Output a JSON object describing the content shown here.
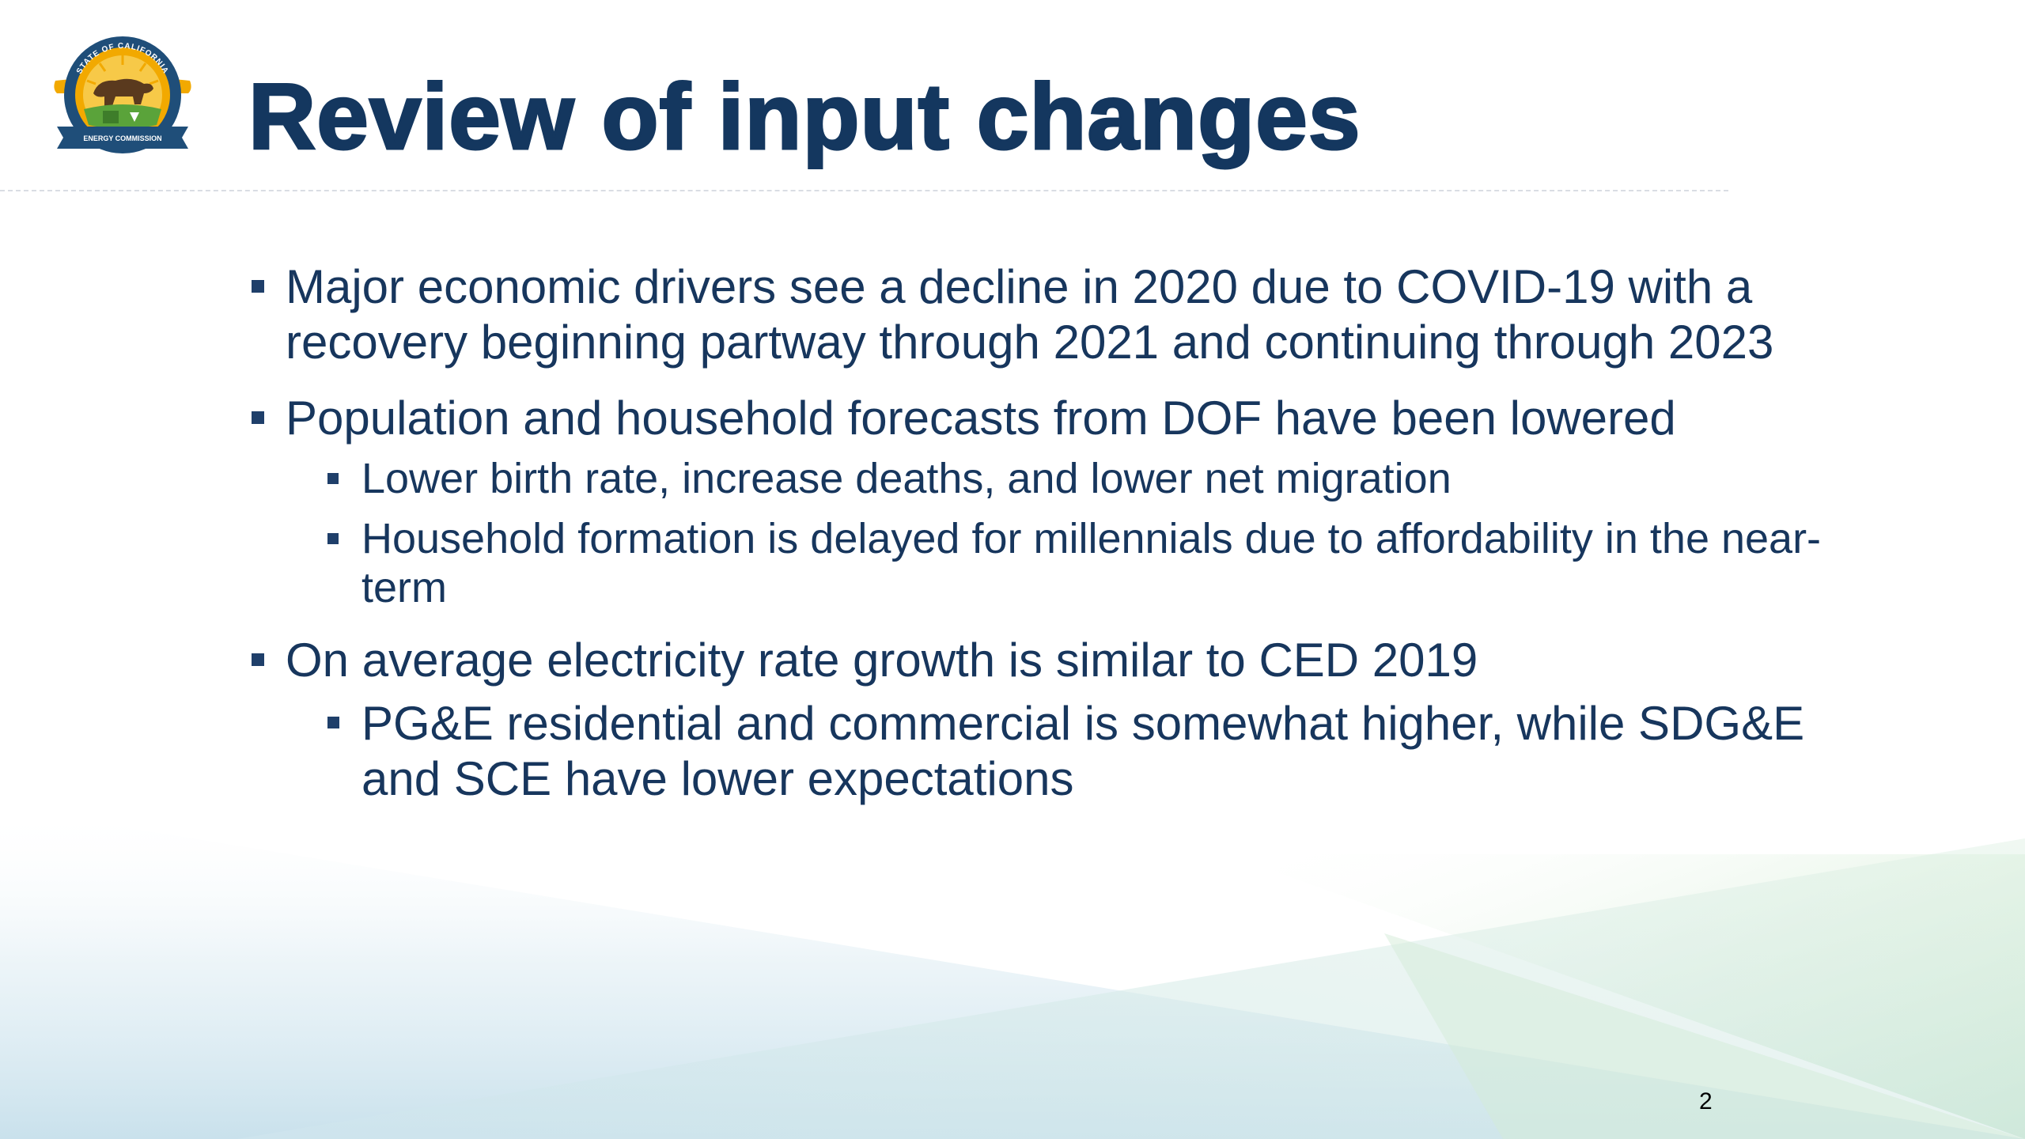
{
  "slide": {
    "title": "Review of input changes",
    "logo": {
      "icon": "california-energy-commission-seal",
      "arc_text_top": "STATE OF CALIFORNIA",
      "banner_text": "ENERGY COMMISSION"
    },
    "bullets": [
      {
        "text": "Major economic drivers see a decline in 2020 due to COVID-19 with a recovery beginning partway through 2021 and continuing through 2023",
        "sub": []
      },
      {
        "text": "Population and household forecasts from DOF have been lowered",
        "sub": [
          "Lower birth rate, increase deaths, and lower net migration",
          "Household formation is delayed for millennials due to affordability in the near-term"
        ]
      },
      {
        "text": "On average electricity rate growth is similar to CED 2019",
        "sub": [
          "PG&E residential and commercial is somewhat higher, while SDG&E and SCE have lower expectations"
        ]
      }
    ],
    "page_number": "2"
  },
  "colors": {
    "title": "#14375f",
    "body_text": "#17365d",
    "bullet": "#1f3f6a",
    "seal_blue": "#1f4e79",
    "seal_gold": "#f2a900",
    "seal_green": "#5aa33a",
    "background_wave_green": "#cfe9d2",
    "background_wave_blue": "#cde3ee"
  }
}
